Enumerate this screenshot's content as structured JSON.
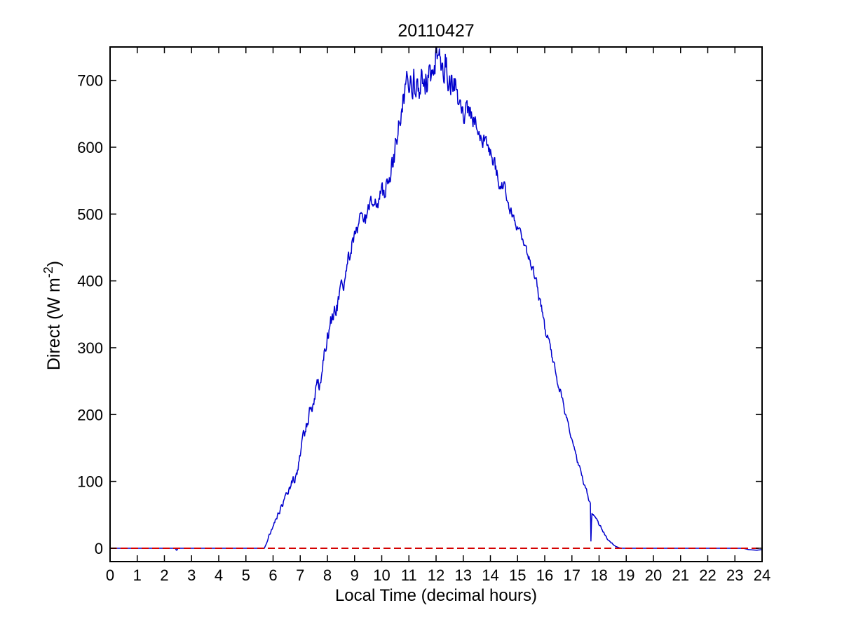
{
  "colors": {
    "background": "#ffffff",
    "axis": "#000000",
    "text": "#000000",
    "direct_line": "#0000cc",
    "zero_line": "#d40000"
  },
  "chart_data": {
    "type": "line",
    "title": "20110427",
    "xlabel": "Local Time (decimal hours)",
    "ylabel": {
      "prefix": "Direct (W m",
      "superscript": "-2",
      "suffix": ")"
    },
    "xlim": [
      0,
      24
    ],
    "ylim": [
      -20,
      750
    ],
    "x_ticks": [
      0,
      1,
      2,
      3,
      4,
      5,
      6,
      7,
      8,
      9,
      10,
      11,
      12,
      13,
      14,
      15,
      16,
      17,
      18,
      19,
      20,
      21,
      22,
      23,
      24
    ],
    "y_ticks": [
      0,
      100,
      200,
      300,
      400,
      500,
      600,
      700
    ],
    "grid": false,
    "box": true,
    "legend": null,
    "series": [
      {
        "name": "direct-irradiance",
        "color": "#0000cc",
        "style": "solid",
        "width": 1.5,
        "sample_step_hours": 0.02,
        "seed": 123456789,
        "envelope_x": [
          0,
          2.4,
          2.44,
          2.46,
          2.5,
          5.68,
          5.78,
          6.0,
          6.3,
          6.6,
          6.9,
          7.0,
          7.2,
          7.4,
          7.55,
          7.7,
          7.9,
          8.1,
          8.35,
          8.6,
          9.0,
          9.3,
          9.6,
          9.9,
          10.2,
          10.45,
          10.6,
          10.75,
          10.9,
          11.05,
          11.2,
          11.35,
          11.5,
          11.65,
          11.8,
          11.95,
          12.05,
          12.2,
          12.35,
          12.5,
          12.65,
          12.8,
          12.95,
          13.1,
          13.3,
          13.6,
          13.9,
          14.1,
          14.3,
          14.5,
          14.7,
          14.9,
          15.1,
          15.3,
          15.5,
          15.7,
          15.9,
          16.0,
          16.2,
          16.4,
          16.6,
          16.8,
          17.0,
          17.2,
          17.4,
          17.55,
          17.65,
          17.69,
          17.7,
          17.73,
          17.8,
          17.95,
          18.1,
          18.25,
          18.4,
          18.55,
          18.7,
          18.85,
          23.3,
          23.5,
          23.8,
          24
        ],
        "envelope_y": [
          0,
          0,
          -3,
          -3,
          0,
          0,
          10,
          35,
          60,
          90,
          115,
          140,
          180,
          215,
          235,
          245,
          300,
          335,
          360,
          400,
          470,
          490,
          505,
          520,
          545,
          580,
          630,
          670,
          690,
          680,
          700,
          690,
          710,
          700,
          715,
          730,
          745,
          725,
          730,
          710,
          700,
          680,
          660,
          655,
          645,
          622,
          603,
          580,
          550,
          540,
          510,
          490,
          470,
          450,
          430,
          395,
          360,
          330,
          300,
          260,
          230,
          195,
          160,
          130,
          100,
          85,
          70,
          62,
          6,
          55,
          48,
          40,
          28,
          18,
          10,
          4,
          1,
          0,
          0,
          -2,
          -3,
          -2
        ],
        "noise_x": [
          0,
          5.68,
          5.9,
          6.5,
          7.2,
          7.6,
          8.0,
          9.0,
          10.0,
          10.8,
          11.2,
          12.6,
          13.0,
          13.4,
          13.8,
          14.2,
          14.6,
          15.2,
          15.6,
          16.0,
          16.5,
          17.0,
          17.5,
          17.75,
          18.2,
          18.6,
          18.75,
          24
        ],
        "noise_amp": [
          0,
          0,
          3,
          5,
          10,
          14,
          12,
          14,
          16,
          22,
          26,
          26,
          20,
          16,
          10,
          12,
          8,
          6,
          10,
          8,
          6,
          5,
          4,
          3,
          2,
          1,
          0,
          0
        ]
      },
      {
        "name": "zero-reference",
        "color": "#d40000",
        "style": "dashed",
        "width": 2,
        "dash": [
          10,
          5
        ],
        "envelope_x": [
          0,
          24
        ],
        "envelope_y": [
          0,
          0
        ]
      }
    ]
  }
}
